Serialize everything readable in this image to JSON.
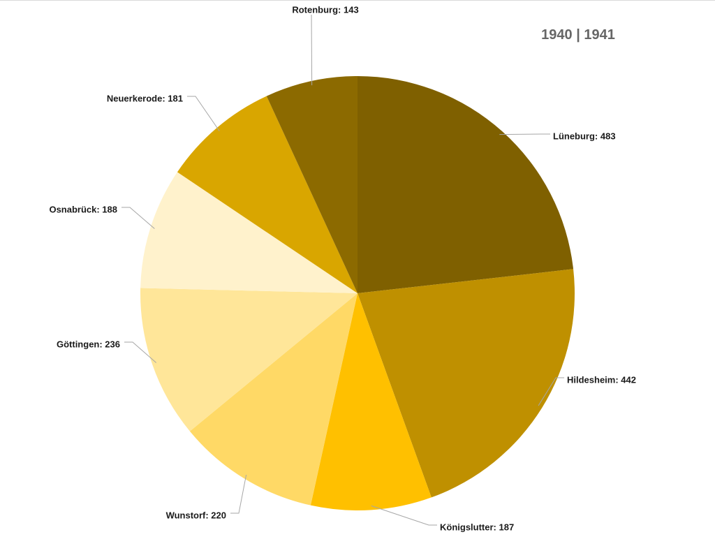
{
  "chart_data": {
    "type": "pie",
    "title": "1940 | 1941",
    "start_angle_deg": 0,
    "direction": "clockwise",
    "slices": [
      {
        "label": "Lüneburg",
        "value": 483,
        "color": "#7f6000"
      },
      {
        "label": "Hildesheim",
        "value": 442,
        "color": "#bf9000"
      },
      {
        "label": "Königslutter",
        "value": 187,
        "color": "#ffc000"
      },
      {
        "label": "Wunstorf",
        "value": 220,
        "color": "#ffd966"
      },
      {
        "label": "Göttingen",
        "value": 236,
        "color": "#ffe699"
      },
      {
        "label": "Osnabrück",
        "value": 188,
        "color": "#fff2cc"
      },
      {
        "label": "Neuerkerode",
        "value": 181,
        "color": "#d9a600"
      },
      {
        "label": "Rotenburg",
        "value": 143,
        "color": "#8c6a00"
      }
    ],
    "data_labels": [
      "Lüneburg: 483",
      "Hildesheim: 442",
      "Königslutter: 187",
      "Wunstorf: 220",
      "Göttingen: 236",
      "Osnabrück: 188",
      "Neuerkerode: 181",
      "Rotenburg: 143"
    ]
  }
}
